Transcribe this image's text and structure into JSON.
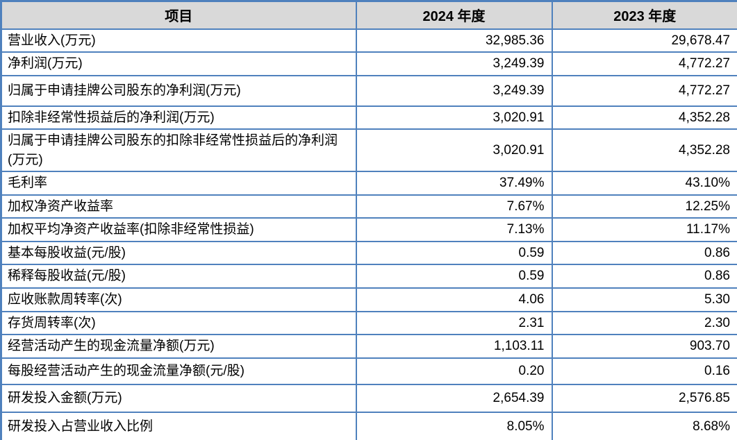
{
  "colors": {
    "border_blue": "#4f81bd",
    "header_bg": "#d9d9d9",
    "row_bg": "#ffffff",
    "text": "#000000"
  },
  "table": {
    "columns": [
      {
        "label": "项目"
      },
      {
        "label": "2024 年度"
      },
      {
        "label": "2023 年度"
      }
    ],
    "rows": [
      {
        "item": "营业收入(万元)",
        "y2024": "32,985.36",
        "y2023": "29,678.47"
      },
      {
        "item": "净利润(万元)",
        "y2024": "3,249.39",
        "y2023": "4,772.27"
      },
      {
        "item": "归属于申请挂牌公司股东的净利润(万元)",
        "y2024": "3,249.39",
        "y2023": "4,772.27"
      },
      {
        "item": "扣除非经常性损益后的净利润(万元)",
        "y2024": "3,020.91",
        "y2023": "4,352.28"
      },
      {
        "item": "归属于申请挂牌公司股东的扣除非经常性损益后的净利润(万元)",
        "y2024": "3,020.91",
        "y2023": "4,352.28"
      },
      {
        "item": "毛利率",
        "y2024": "37.49%",
        "y2023": "43.10%"
      },
      {
        "item": "加权净资产收益率",
        "y2024": "7.67%",
        "y2023": "12.25%"
      },
      {
        "item": "加权平均净资产收益率(扣除非经常性损益)",
        "y2024": "7.13%",
        "y2023": "11.17%"
      },
      {
        "item": "基本每股收益(元/股)",
        "y2024": "0.59",
        "y2023": "0.86"
      },
      {
        "item": "稀释每股收益(元/股)",
        "y2024": "0.59",
        "y2023": "0.86"
      },
      {
        "item": "应收账款周转率(次)",
        "y2024": "4.06",
        "y2023": "5.30"
      },
      {
        "item": "存货周转率(次)",
        "y2024": "2.31",
        "y2023": "2.30"
      },
      {
        "item": "经营活动产生的现金流量净额(万元)",
        "y2024": "1,103.11",
        "y2023": "903.70"
      },
      {
        "item": "每股经营活动产生的现金流量净额(元/股)",
        "y2024": "0.20",
        "y2023": "0.16"
      },
      {
        "item": "研发投入金额(万元)",
        "y2024": "2,654.39",
        "y2023": "2,576.85"
      },
      {
        "item": "研发投入占营业收入比例",
        "y2024": "8.05%",
        "y2023": "8.68%"
      }
    ]
  }
}
